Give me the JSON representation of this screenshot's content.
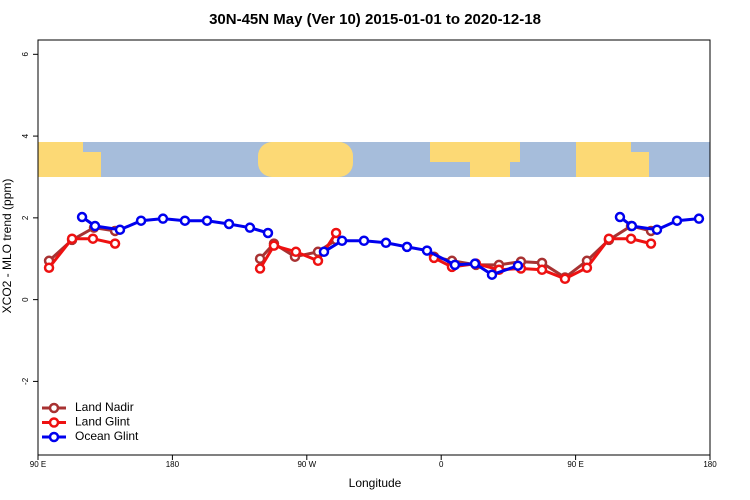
{
  "chart_data": {
    "type": "line",
    "title": "30N-45N May (Ver 10)   2015-01-01 to 2020-12-18",
    "x_label": "Longitude",
    "y_label": "XCO2 - MLO trend (ppm)",
    "xlim": [
      90,
      540
    ],
    "ylim": [
      -3.8,
      6.35
    ],
    "xticks": [
      {
        "value": 90,
        "label": "90 E"
      },
      {
        "value": 180,
        "label": "180"
      },
      {
        "value": 270,
        "label": "90 W"
      },
      {
        "value": 360,
        "label": "0"
      },
      {
        "value": 450,
        "label": "90 E"
      },
      {
        "value": 540,
        "label": "180"
      }
    ],
    "yticks": [
      -2,
      0,
      2,
      4,
      6
    ],
    "legend": "bottom-left",
    "series": [
      {
        "name": "Land Nadir",
        "color": "#a83232",
        "x": [
          97.4,
          112.8,
          127.5,
          141.6,
          null,
          238.7,
          248.0,
          262.1,
          277.5,
          289.6,
          null,
          355.2,
          367.2,
          383.3,
          398.7,
          413.4,
          427.5,
          442.9,
          457.6,
          472.3,
          487.1,
          500.5
        ],
        "values": [
          0.95,
          1.46,
          1.76,
          1.68,
          null,
          1.0,
          1.37,
          1.05,
          1.17,
          1.46,
          null,
          1.05,
          0.95,
          0.85,
          0.85,
          0.93,
          0.9,
          0.54,
          0.95,
          1.46,
          1.8,
          1.68
        ]
      },
      {
        "name": "Land Glint",
        "color": "#ee1111",
        "x": [
          97.4,
          112.8,
          126.8,
          141.6,
          null,
          238.7,
          248.0,
          262.7,
          277.5,
          289.6,
          null,
          355.2,
          367.2,
          383.3,
          398.7,
          413.4,
          427.5,
          442.9,
          457.6,
          472.3,
          487.1,
          500.5
        ],
        "values": [
          0.78,
          1.49,
          1.49,
          1.37,
          null,
          0.76,
          1.32,
          1.17,
          0.95,
          1.63,
          null,
          1.02,
          0.8,
          0.88,
          0.73,
          0.76,
          0.73,
          0.51,
          0.78,
          1.49,
          1.49,
          1.37
        ]
      },
      {
        "name": "Ocean Glint",
        "color": "#0000ee",
        "x": [
          119.5,
          128.2,
          144.9,
          159.0,
          173.7,
          188.4,
          203.2,
          217.9,
          231.9,
          244.0,
          null,
          281.5,
          293.6,
          308.3,
          323.0,
          337.1,
          350.5,
          369.2,
          382.6,
          394.0,
          411.4,
          null,
          479.7,
          487.7,
          504.5,
          517.9,
          532.6
        ],
        "values": [
          2.02,
          1.8,
          1.71,
          1.93,
          1.98,
          1.93,
          1.93,
          1.85,
          1.76,
          1.63,
          null,
          1.17,
          1.44,
          1.44,
          1.39,
          1.29,
          1.2,
          0.85,
          0.88,
          0.61,
          0.83,
          null,
          2.02,
          1.8,
          1.71,
          1.93,
          1.98
        ]
      }
    ]
  }
}
